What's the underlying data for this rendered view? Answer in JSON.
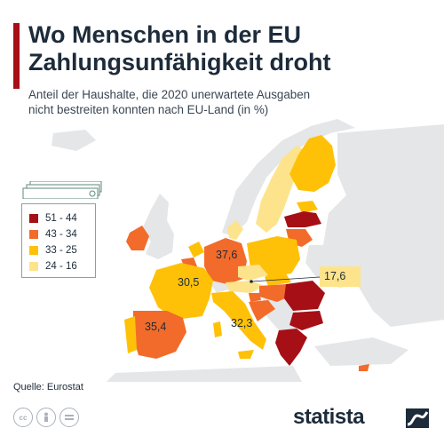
{
  "header": {
    "title_line1": "Wo Menschen in der EU",
    "title_line2": "Zahlungsunfähigkeit droht",
    "subtitle_line1": "Anteil der Haushalte, die 2020 unerwartete Ausgaben",
    "subtitle_line2": "nicht bestreiten konnten nach EU-Land (in %)"
  },
  "legend": [
    {
      "label": "51 - 44",
      "color": "#a50f15"
    },
    {
      "label": "43 - 34",
      "color": "#f26b2a"
    },
    {
      "label": "33 - 25",
      "color": "#ffc107"
    },
    {
      "label": "24 - 16",
      "color": "#fde48c"
    }
  ],
  "colors": {
    "non_eu_land": "#e4e6e8",
    "accent": "#a50f15",
    "brand": "#1d2b3a"
  },
  "value_labels": [
    {
      "country": "France",
      "value": "30,5"
    },
    {
      "country": "Germany",
      "value": "37,6"
    },
    {
      "country": "Spain",
      "value": "35,4"
    },
    {
      "country": "Italy",
      "value": "32,3"
    },
    {
      "country": "Austria",
      "value": "17,6"
    }
  ],
  "footer": {
    "source": "Quelle: Eurostat",
    "brand": "statista",
    "license_icons": [
      "cc-icon",
      "person-icon",
      "equals-icon"
    ]
  }
}
